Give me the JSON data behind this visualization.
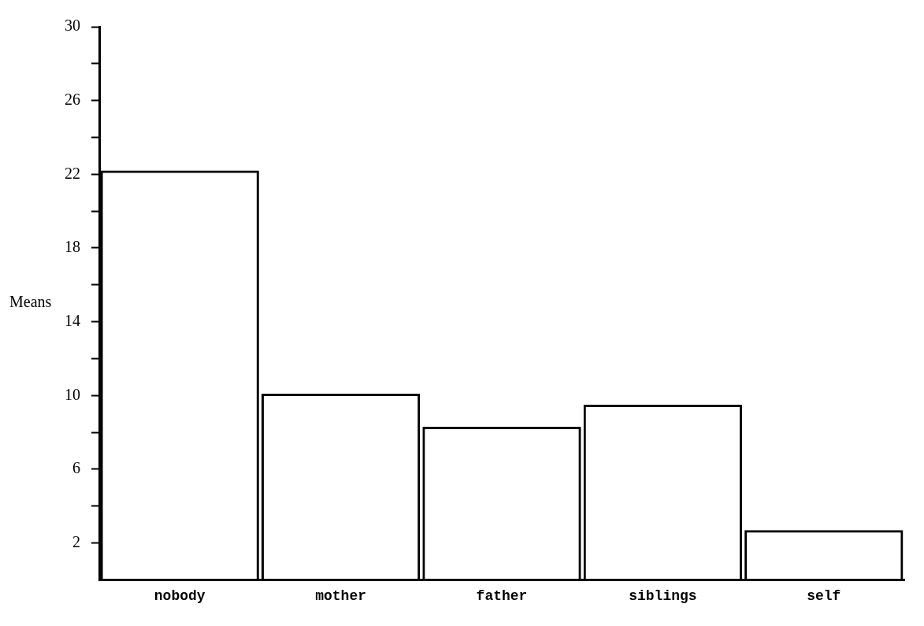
{
  "chart_data": {
    "type": "bar",
    "ylabel": "Means",
    "categories": [
      "nobody",
      "mother",
      "father",
      "siblings",
      "self"
    ],
    "values": [
      22.2,
      10.1,
      8.3,
      9.5,
      2.7
    ],
    "color": "#000000",
    "ylim": [
      0,
      30
    ],
    "yticks": [
      2,
      {
        "value": 4,
        "label": null
      },
      6,
      {
        "value": 8,
        "label": null
      },
      10,
      {
        "value": 12,
        "label": null
      },
      14,
      {
        "value": 16,
        "label": null
      },
      18,
      {
        "value": 20,
        "label": null
      },
      22,
      {
        "value": 24,
        "label": null
      },
      26,
      {
        "value": 28,
        "label": null
      },
      30
    ],
    "grid": false,
    "legend": false
  }
}
